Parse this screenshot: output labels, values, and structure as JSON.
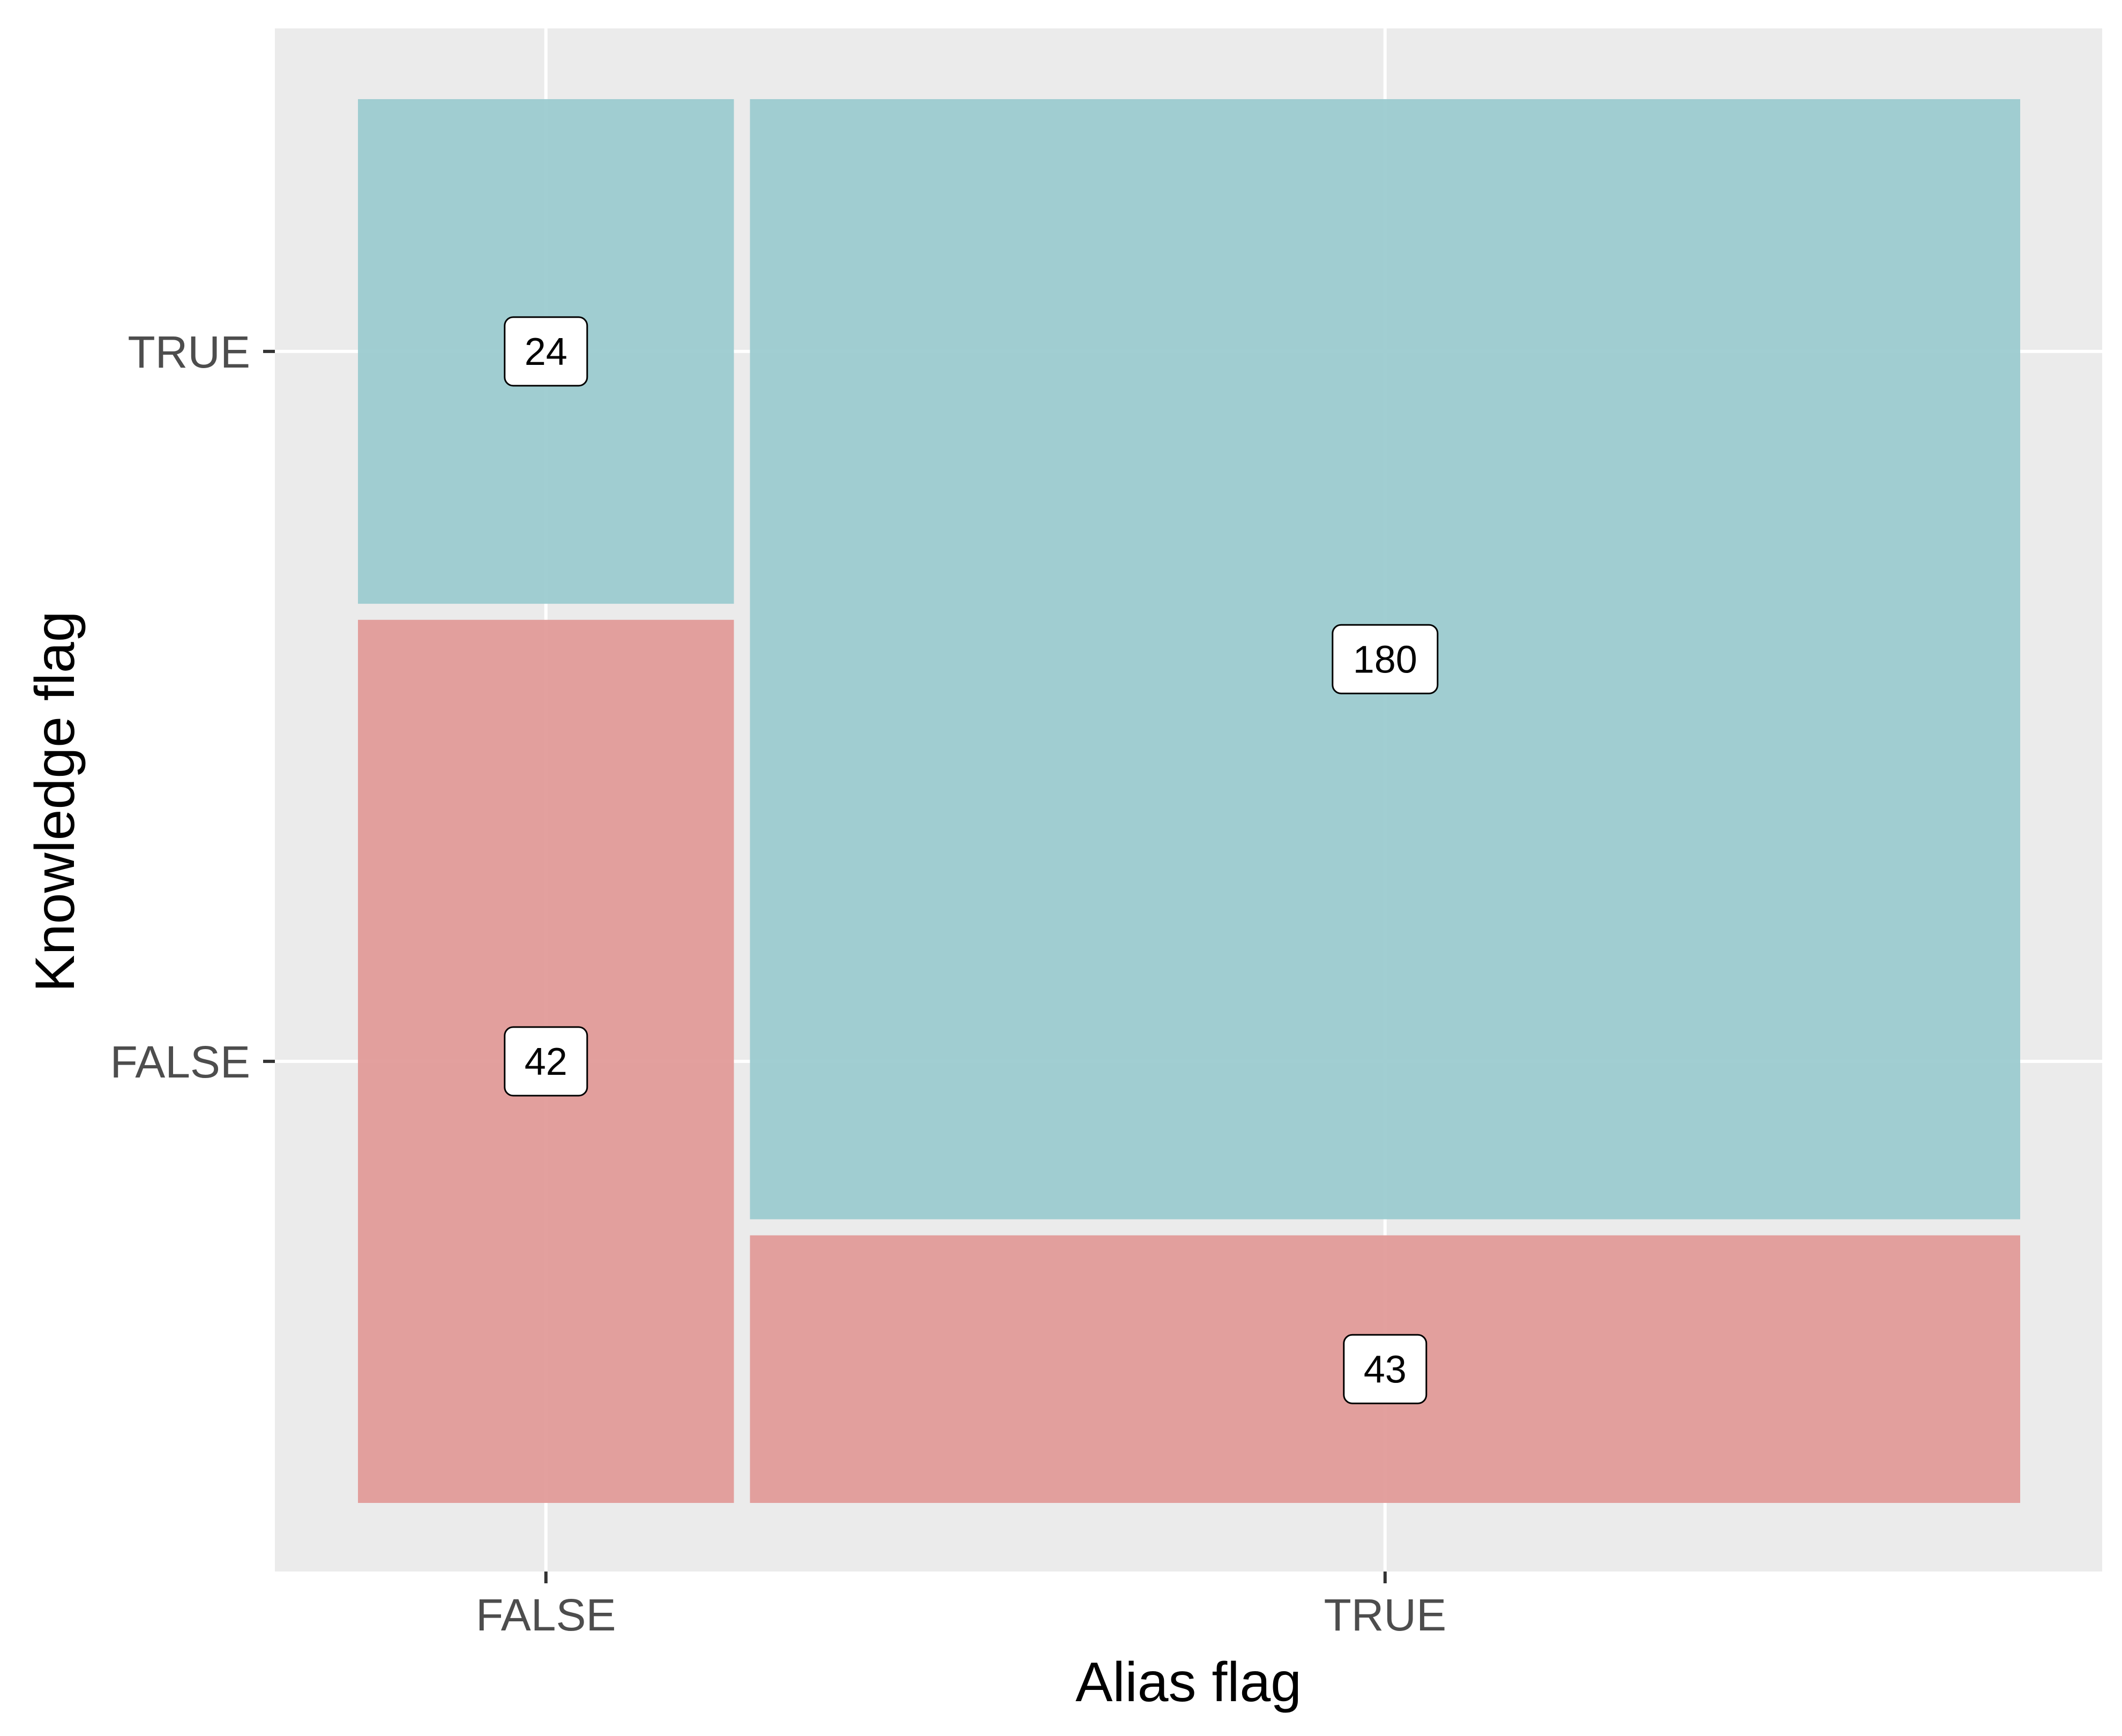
{
  "chart_data": {
    "type": "mosaic",
    "title": "",
    "xlabel": "Alias flag",
    "ylabel": "Knowledge flag",
    "x_categories": [
      "FALSE",
      "TRUE"
    ],
    "y_categories": [
      "FALSE",
      "TRUE"
    ],
    "cells": [
      {
        "x": "FALSE",
        "y": "FALSE",
        "count": 42
      },
      {
        "x": "FALSE",
        "y": "TRUE",
        "count": 24
      },
      {
        "x": "TRUE",
        "y": "FALSE",
        "count": 43
      },
      {
        "x": "TRUE",
        "y": "TRUE",
        "count": 180
      }
    ],
    "colors": {
      "FALSE": "#e19b99",
      "TRUE": "#9ccbd0"
    },
    "panel_background": "#ebebeb",
    "grid": true,
    "legend": "none"
  }
}
